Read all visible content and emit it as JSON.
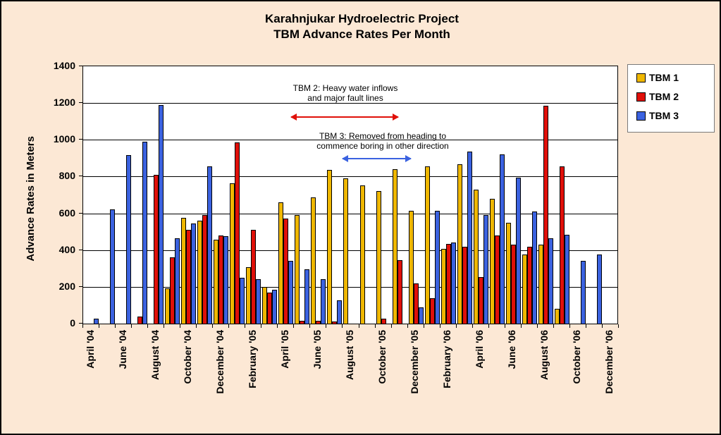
{
  "title": {
    "line1": "Karahnjukar Hydroelectric Project",
    "line2": "TBM Advance Rates Per Month"
  },
  "y_axis": {
    "title": "Advance Rates in Meters",
    "tick_labels": [
      "0",
      "200",
      "400",
      "600",
      "800",
      "1000",
      "1200",
      "1400"
    ]
  },
  "annotations": {
    "tbm2": {
      "line1": "TBM 2: Heavy water inflows",
      "line2": "and major fault lines",
      "arrow_color": "#E01009"
    },
    "tbm3": {
      "line1": "TBM 3: Removed from heading to",
      "line2": "commence boring in other direction",
      "arrow_color": "#3B62E0"
    }
  },
  "colors": {
    "background": "#FCE8D5",
    "plot_background": "#FFFFFF",
    "gridline": "#000000",
    "tbm1": "#EFB700",
    "tbm2": "#E01009",
    "tbm3": "#3B62E0"
  },
  "chart_data": {
    "type": "bar",
    "title": "Karahnjukar Hydroelectric Project — TBM Advance Rates Per Month",
    "xlabel": "",
    "ylabel": "Advance Rates in Meters",
    "ylim": [
      0,
      1400
    ],
    "ytick_step": 200,
    "grid": "horizontal",
    "legend_position": "right",
    "x_label_interval": 2,
    "categories": [
      "April '04",
      "May '04",
      "June '04",
      "July '04",
      "August '04",
      "September '04",
      "October '04",
      "November '04",
      "December '04",
      "January '05",
      "February '05",
      "March '05",
      "April '05",
      "May '05",
      "June '05",
      "July '05",
      "August '05",
      "September '05",
      "October '05",
      "November '05",
      "December '05",
      "January '06",
      "February '06",
      "March '06",
      "April '06",
      "May '06",
      "June '06",
      "July '06",
      "August '06",
      "September '06",
      "October '06",
      "November '06",
      "December '06"
    ],
    "series": [
      {
        "name": "TBM 1",
        "color": "#EFB700",
        "values": [
          null,
          null,
          null,
          null,
          null,
          190,
          575,
          560,
          455,
          765,
          305,
          200,
          660,
          590,
          685,
          835,
          790,
          750,
          720,
          840,
          615,
          855,
          405,
          865,
          730,
          680,
          550,
          375,
          430,
          80,
          null,
          null,
          null
        ]
      },
      {
        "name": "TBM 2",
        "color": "#E01009",
        "values": [
          null,
          null,
          null,
          40,
          810,
          360,
          510,
          590,
          480,
          985,
          510,
          170,
          570,
          15,
          15,
          10,
          null,
          null,
          25,
          345,
          220,
          140,
          435,
          420,
          255,
          480,
          430,
          420,
          1185,
          855,
          null,
          null,
          null
        ]
      },
      {
        "name": "TBM 3",
        "color": "#3B62E0",
        "values": [
          25,
          620,
          915,
          990,
          1190,
          465,
          545,
          855,
          475,
          250,
          240,
          185,
          340,
          295,
          240,
          125,
          null,
          null,
          null,
          null,
          90,
          615,
          440,
          935,
          590,
          920,
          795,
          610,
          465,
          485,
          340,
          375,
          null
        ]
      }
    ]
  }
}
